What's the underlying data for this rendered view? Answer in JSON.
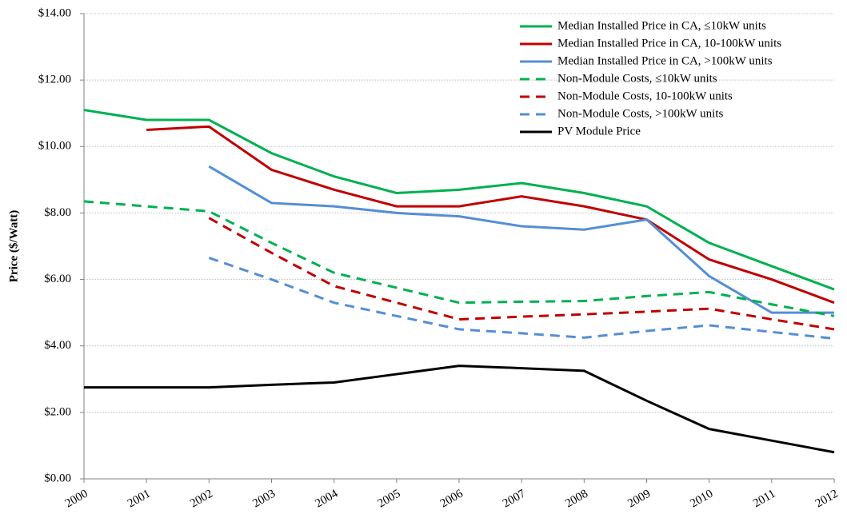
{
  "chart_data": {
    "type": "line",
    "y_label": "Price ($/Watt)",
    "categories": [
      "2000",
      "2001",
      "2002",
      "2003",
      "2004",
      "2005",
      "2006",
      "2007",
      "2008",
      "2009",
      "2010",
      "2011",
      "2012"
    ],
    "ylim": [
      0,
      14
    ],
    "yticks": [
      {
        "value": 0,
        "label": "$0.00"
      },
      {
        "value": 2,
        "label": "$2.00"
      },
      {
        "value": 4,
        "label": "$4.00"
      },
      {
        "value": 6,
        "label": "$6.00"
      },
      {
        "value": 8,
        "label": "$8.00"
      },
      {
        "value": 10,
        "label": "$10.00"
      },
      {
        "value": 12,
        "label": "$12.00"
      },
      {
        "value": 14,
        "label": "$14.00"
      }
    ],
    "grid": true,
    "legend": "top-right",
    "series": [
      {
        "name": "Median Installed Price in CA, ≤10kW units",
        "color": "#00b050",
        "dashed": false,
        "values": [
          11.1,
          10.8,
          10.8,
          9.8,
          9.1,
          8.6,
          8.7,
          8.9,
          8.6,
          8.2,
          7.1,
          6.4,
          5.7
        ]
      },
      {
        "name": "Median Installed Price in CA, 10-100kW units",
        "color": "#c00000",
        "dashed": false,
        "values": [
          null,
          10.5,
          10.6,
          9.3,
          8.7,
          8.2,
          8.2,
          8.5,
          8.2,
          7.8,
          6.6,
          6.0,
          5.3
        ]
      },
      {
        "name": "Median Installed Price in CA, >100kW units",
        "color": "#558ed5",
        "dashed": false,
        "values": [
          null,
          null,
          9.4,
          8.3,
          8.2,
          8.0,
          7.9,
          7.6,
          7.5,
          7.8,
          6.1,
          5.0,
          5.0
        ]
      },
      {
        "name": "Non-Module Costs, ≤10kW units",
        "color": "#00b050",
        "dashed": true,
        "values": [
          8.35,
          8.2,
          8.05,
          7.1,
          6.2,
          5.75,
          5.3,
          5.33,
          5.35,
          5.5,
          5.62,
          5.25,
          4.9
        ]
      },
      {
        "name": "Non-Module Costs, 10-100kW units",
        "color": "#c00000",
        "dashed": true,
        "values": [
          null,
          null,
          7.85,
          6.8,
          5.8,
          5.3,
          4.8,
          4.88,
          4.95,
          5.03,
          5.12,
          4.8,
          4.5
        ]
      },
      {
        "name": "Non-Module Costs, >100kW units",
        "color": "#558ed5",
        "dashed": true,
        "values": [
          null,
          null,
          6.65,
          6.0,
          5.3,
          4.9,
          4.5,
          4.38,
          4.25,
          4.45,
          4.62,
          4.42,
          4.22
        ]
      },
      {
        "name": "PV Module Price",
        "color": "#000000",
        "dashed": false,
        "values": [
          2.75,
          2.75,
          2.75,
          2.83,
          2.9,
          3.15,
          3.4,
          3.33,
          3.25,
          2.35,
          1.5,
          1.15,
          0.8
        ]
      }
    ]
  }
}
